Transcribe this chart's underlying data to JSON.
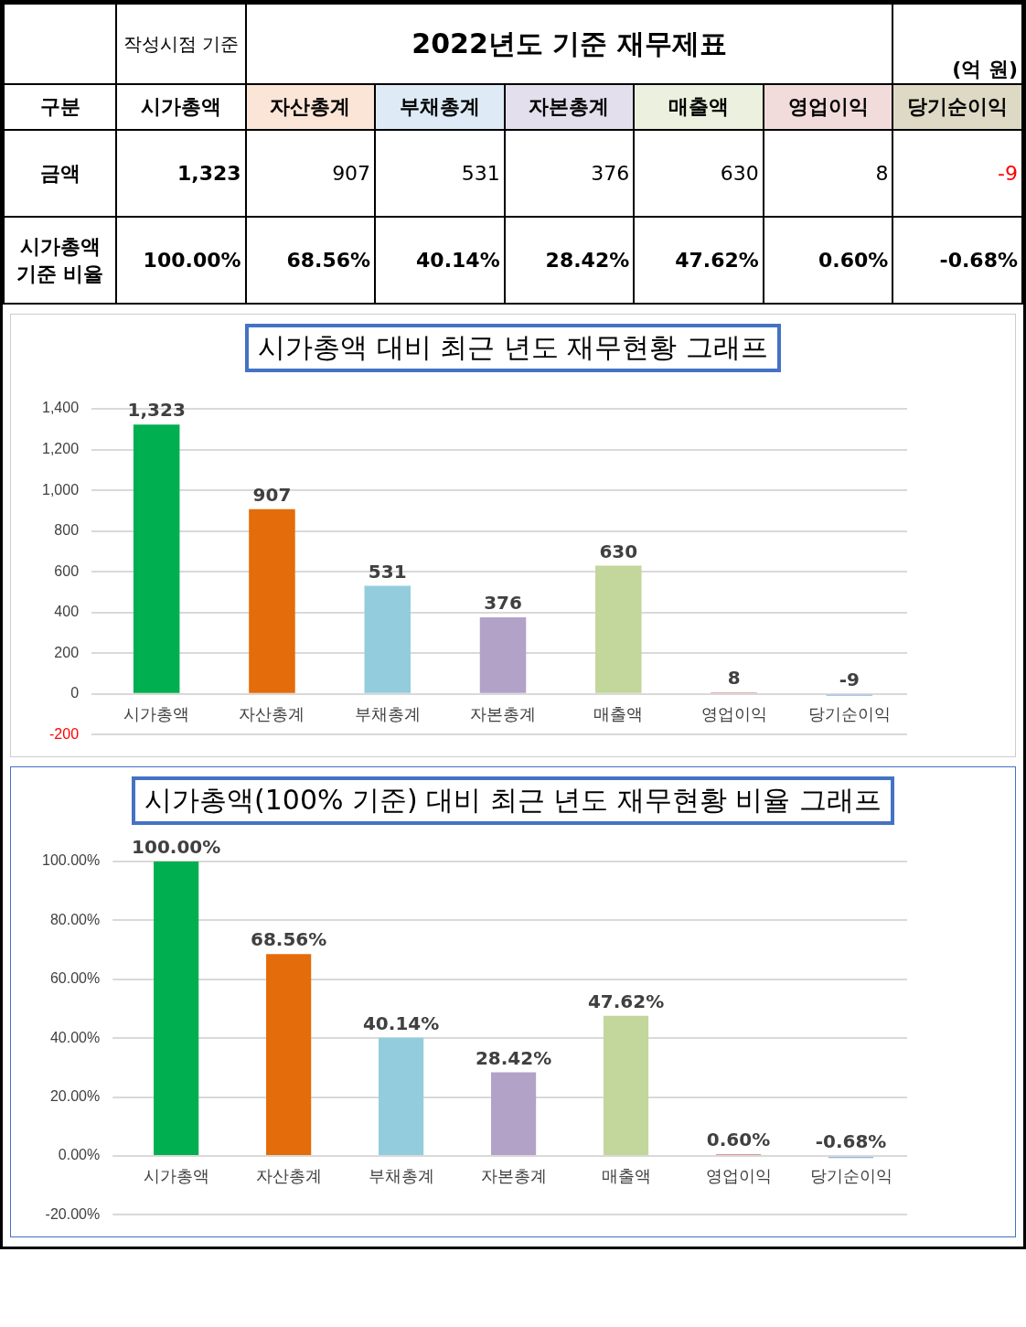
{
  "chart_data": [
    {
      "type": "other",
      "title": "2022년도 기준 재무제표",
      "annotations": [
        "작성시점 기준",
        "(억 원)",
        "구분"
      ],
      "categories": [
        "시가총액",
        "자산총계",
        "부채총계",
        "자본총계",
        "매출액",
        "영업이익",
        "당기순이익"
      ],
      "colors": [
        "#ffffff",
        "#fbe5d6",
        "#deebf7",
        "#e4dfec",
        "#ebf1de",
        "#f2dcdb",
        "#ddd9c4"
      ],
      "series": [
        {
          "name": "금액",
          "values": [
            1323,
            907,
            531,
            376,
            630,
            8,
            -9
          ],
          "value_labels": [
            "1,323",
            "907",
            "531",
            "376",
            "630",
            "8",
            "-9"
          ],
          "colors": [
            "#000000",
            "#000000",
            "#000000",
            "#000000",
            "#000000",
            "#000000",
            "#ff0000"
          ]
        },
        {
          "name": "시가총액 기준 비율",
          "values": [
            100,
            68.56,
            40.14,
            28.42,
            47.62,
            0.6,
            -0.68
          ],
          "value_labels": [
            "100.00%",
            "68.56%",
            "40.14%",
            "28.42%",
            "47.62%",
            "0.60%",
            "-0.68%"
          ],
          "colors": [
            "#000000",
            "#000000",
            "#000000",
            "#000000",
            "#000000",
            "#000000",
            "#000000"
          ]
        }
      ]
    },
    {
      "type": "bar",
      "title": "시가총액 대비 최근 년도 재무현황 그래프",
      "categories": [
        "시가총액",
        "자산총계",
        "부채총계",
        "자본총계",
        "매출액",
        "영업이익",
        "당기순이익"
      ],
      "values": [
        1323,
        907,
        531,
        376,
        630,
        8,
        -9
      ],
      "value_labels": [
        "1,323",
        "907",
        "531",
        "376",
        "630",
        "8",
        "-9"
      ],
      "colors": [
        "#00b050",
        "#e46c0a",
        "#93cddd",
        "#b3a2c7",
        "#c3d69b",
        "#d99694",
        "#8eb4e3"
      ],
      "ylim": [
        -200,
        1400
      ],
      "yticks": [
        -200,
        0,
        200,
        400,
        600,
        800,
        {
          "value": 1000,
          "label": "1,000"
        },
        {
          "value": 1200,
          "label": "1,200"
        },
        {
          "value": 1400,
          "label": "1,400"
        }
      ],
      "grid": "y"
    },
    {
      "type": "bar",
      "title": "시가총액(100% 기준) 대비 최근 년도 재무현황 비율 그래프",
      "categories": [
        "시가총액",
        "자산총계",
        "부채총계",
        "자본총계",
        "매출액",
        "영업이익",
        "당기순이익"
      ],
      "values": [
        100,
        68.56,
        40.14,
        28.42,
        47.62,
        0.6,
        -0.68
      ],
      "value_labels": [
        "100.00%",
        "68.56%",
        "40.14%",
        "28.42%",
        "47.62%",
        "0.60%",
        "-0.68%"
      ],
      "colors": [
        "#00b050",
        "#e46c0a",
        "#93cddd",
        "#b3a2c7",
        "#c3d69b",
        "#d99694",
        "#8eb4e3"
      ],
      "ylim": [
        -20,
        100
      ],
      "yticks": [
        {
          "value": -20,
          "label": "-20.00%"
        },
        {
          "value": 0,
          "label": "0.00%"
        },
        {
          "value": 20,
          "label": "20.00%"
        },
        {
          "value": 40,
          "label": "40.00%"
        },
        {
          "value": 60,
          "label": "60.00%"
        },
        {
          "value": 80,
          "label": "80.00%"
        },
        {
          "value": 100,
          "label": "100.00%"
        }
      ],
      "grid": "y"
    }
  ]
}
